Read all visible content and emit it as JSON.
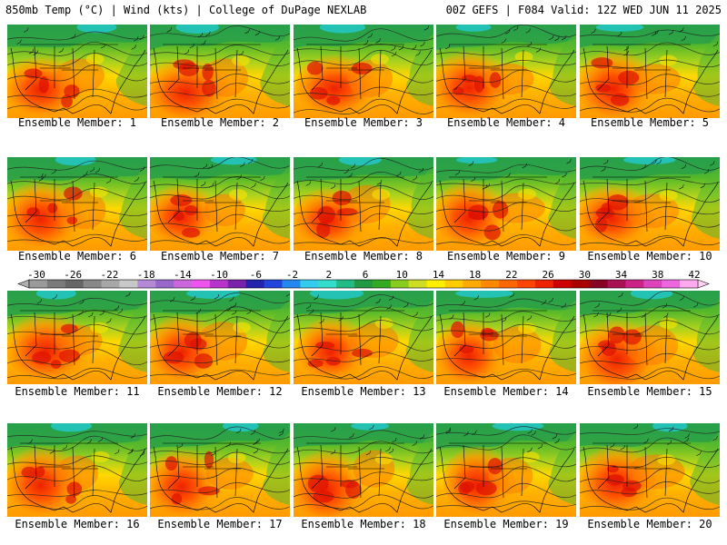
{
  "header": {
    "left": "850mb Temp (°C) | Wind (kts) | College of DuPage NEXLAB",
    "right": "00Z GEFS | F084 Valid: 12Z WED JUN 11 2025"
  },
  "caption_prefix": "Ensemble Member: ",
  "members": [
    1,
    2,
    3,
    4,
    5,
    6,
    7,
    8,
    9,
    10,
    11,
    12,
    13,
    14,
    15,
    16,
    17,
    18,
    19,
    20
  ],
  "colorbar": {
    "labels": [
      "-30",
      "-26",
      "-22",
      "-18",
      "-14",
      "-10",
      "-6",
      "-2",
      "2",
      "6",
      "10",
      "14",
      "18",
      "22",
      "26",
      "30",
      "34",
      "38",
      "42"
    ],
    "colors": [
      "#9a9a9a",
      "#7a7a7a",
      "#666666",
      "#888888",
      "#a7a7a7",
      "#c8c8c8",
      "#b48ad6",
      "#9966cc",
      "#cc66dd",
      "#ee55ee",
      "#b833cc",
      "#7a22aa",
      "#2222aa",
      "#2244dd",
      "#2288ee",
      "#33ccee",
      "#33ddcc",
      "#22bb88",
      "#229944",
      "#33aa22",
      "#88cc22",
      "#ccdd22",
      "#ffee00",
      "#ffcc00",
      "#ffaa00",
      "#ff8800",
      "#ff6600",
      "#ff4400",
      "#ee2200",
      "#cc0000",
      "#aa0000",
      "#880022",
      "#aa1155",
      "#cc2288",
      "#dd44bb",
      "#ee66dd",
      "#ffaaee"
    ]
  }
}
